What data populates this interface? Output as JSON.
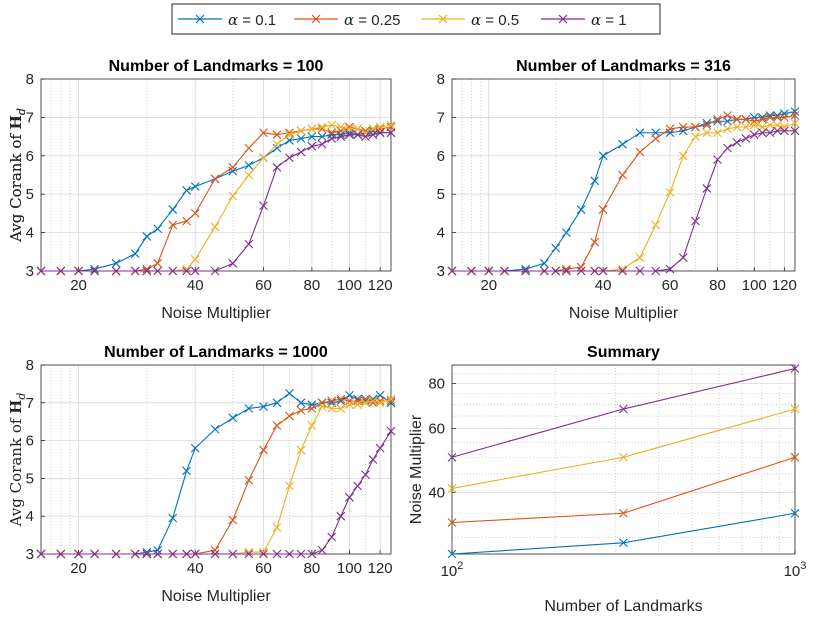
{
  "legend": {
    "entries": [
      {
        "prefix": "α",
        "suffix": " = 0.1"
      },
      {
        "prefix": "α",
        "suffix": " = 0.25"
      },
      {
        "prefix": "α",
        "suffix": " = 0.5"
      },
      {
        "prefix": "α",
        "suffix": " = 1"
      }
    ],
    "marker": "x"
  },
  "colors": [
    "#0072BD",
    "#D95319",
    "#EDB120",
    "#7E2F8E"
  ],
  "chart_data": [
    {
      "type": "line",
      "title": "Number of Landmarks = 100",
      "xlabel": "Noise Multiplier",
      "ylabel_prefix": "Avg Corank of ",
      "ylabel_sym": "H",
      "ylabel_sub": "d",
      "xscale": "log",
      "xlim": [
        16,
        128
      ],
      "ylim": [
        3,
        8
      ],
      "xticks": [
        20,
        40,
        60,
        80,
        100,
        120
      ],
      "yticks": [
        3,
        4,
        5,
        6,
        7,
        8
      ],
      "x": [
        16,
        18,
        20,
        22,
        25,
        28,
        30,
        32,
        35,
        38,
        40,
        45,
        50,
        55,
        60,
        65,
        70,
        75,
        80,
        85,
        90,
        95,
        100,
        105,
        110,
        115,
        120,
        128
      ],
      "series": [
        {
          "name": "α = 0.1",
          "values": [
            3.0,
            3.0,
            3.0,
            3.05,
            3.2,
            3.45,
            3.9,
            4.1,
            4.6,
            5.1,
            5.2,
            5.4,
            5.6,
            5.75,
            5.95,
            6.2,
            6.4,
            6.45,
            6.5,
            6.5,
            6.55,
            6.55,
            6.6,
            6.55,
            6.6,
            6.65,
            6.6,
            6.6
          ]
        },
        {
          "name": "α = 0.25",
          "values": [
            3.0,
            3.0,
            3.0,
            3.0,
            3.0,
            3.0,
            3.05,
            3.2,
            4.2,
            4.3,
            4.5,
            5.4,
            5.7,
            6.2,
            6.6,
            6.55,
            6.6,
            6.65,
            6.7,
            6.7,
            6.6,
            6.65,
            6.75,
            6.7,
            6.65,
            6.7,
            6.7,
            6.75
          ]
        },
        {
          "name": "α = 0.5",
          "values": [
            3.0,
            3.0,
            3.0,
            3.0,
            3.0,
            3.0,
            3.0,
            3.0,
            3.0,
            3.05,
            3.3,
            4.15,
            4.95,
            5.5,
            5.95,
            6.3,
            6.55,
            6.65,
            6.7,
            6.75,
            6.8,
            6.75,
            6.7,
            6.7,
            6.6,
            6.7,
            6.75,
            6.8
          ]
        },
        {
          "name": "α = 1",
          "values": [
            3.0,
            3.0,
            3.0,
            3.0,
            3.0,
            3.0,
            3.0,
            3.0,
            3.0,
            3.0,
            3.0,
            3.0,
            3.2,
            3.7,
            4.7,
            5.7,
            5.95,
            6.1,
            6.25,
            6.3,
            6.45,
            6.5,
            6.55,
            6.55,
            6.5,
            6.55,
            6.6,
            6.6
          ]
        }
      ]
    },
    {
      "type": "line",
      "title": "Number of Landmarks = 316",
      "xlabel": "Noise Multiplier",
      "ylabel_prefix": "Avg Corank of ",
      "ylabel_sym": "H",
      "ylabel_sub": "d",
      "xscale": "log",
      "xlim": [
        16,
        128
      ],
      "ylim": [
        3,
        8
      ],
      "xticks": [
        20,
        40,
        60,
        80,
        100,
        120
      ],
      "yticks": [
        3,
        4,
        5,
        6,
        7,
        8
      ],
      "x": [
        16,
        18,
        20,
        22,
        25,
        28,
        30,
        32,
        35,
        38,
        40,
        45,
        50,
        55,
        60,
        65,
        70,
        75,
        80,
        85,
        90,
        95,
        100,
        105,
        110,
        115,
        120,
        128
      ],
      "series": [
        {
          "name": "α = 0.1",
          "values": [
            3.0,
            3.0,
            3.0,
            3.0,
            3.05,
            3.2,
            3.6,
            4.0,
            4.6,
            5.35,
            6.0,
            6.3,
            6.6,
            6.6,
            6.6,
            6.65,
            6.75,
            6.85,
            6.9,
            6.9,
            6.95,
            6.95,
            7.0,
            7.0,
            7.05,
            7.05,
            7.1,
            7.15
          ]
        },
        {
          "name": "α = 0.25",
          "values": [
            3.0,
            3.0,
            3.0,
            3.0,
            3.0,
            3.0,
            3.0,
            3.05,
            3.1,
            3.75,
            4.6,
            5.5,
            6.1,
            6.45,
            6.7,
            6.75,
            6.75,
            6.8,
            6.95,
            7.05,
            6.95,
            6.95,
            6.9,
            6.95,
            7.0,
            7.0,
            7.0,
            7.05
          ]
        },
        {
          "name": "α = 0.5",
          "values": [
            3.0,
            3.0,
            3.0,
            3.0,
            3.0,
            3.0,
            3.0,
            3.0,
            3.0,
            3.0,
            3.0,
            3.05,
            3.35,
            4.2,
            5.05,
            6.0,
            6.5,
            6.6,
            6.6,
            6.7,
            6.75,
            6.75,
            6.8,
            6.75,
            6.8,
            6.8,
            6.75,
            6.85
          ]
        },
        {
          "name": "α = 1",
          "values": [
            3.0,
            3.0,
            3.0,
            3.0,
            3.0,
            3.0,
            3.0,
            3.0,
            3.0,
            3.0,
            3.0,
            3.0,
            3.0,
            3.0,
            3.05,
            3.35,
            4.3,
            5.15,
            5.9,
            6.2,
            6.35,
            6.45,
            6.55,
            6.6,
            6.6,
            6.65,
            6.65,
            6.65
          ]
        }
      ]
    },
    {
      "type": "line",
      "title": "Number of Landmarks = 1000",
      "xlabel": "Noise Multiplier",
      "ylabel_prefix": "Avg Corank of ",
      "ylabel_sym": "H",
      "ylabel_sub": "d",
      "xscale": "log",
      "xlim": [
        16,
        128
      ],
      "ylim": [
        3,
        8
      ],
      "xticks": [
        20,
        40,
        60,
        80,
        100,
        120
      ],
      "yticks": [
        3,
        4,
        5,
        6,
        7,
        8
      ],
      "x": [
        16,
        18,
        20,
        22,
        25,
        28,
        30,
        32,
        35,
        38,
        40,
        45,
        50,
        55,
        60,
        65,
        70,
        75,
        80,
        85,
        90,
        95,
        100,
        105,
        110,
        115,
        120,
        128
      ],
      "series": [
        {
          "name": "α = 0.1",
          "values": [
            3.0,
            3.0,
            3.0,
            3.0,
            3.0,
            3.0,
            3.05,
            3.1,
            3.95,
            5.2,
            5.8,
            6.3,
            6.6,
            6.85,
            6.9,
            7.0,
            7.25,
            7.0,
            6.95,
            7.0,
            7.0,
            7.05,
            7.2,
            7.1,
            7.05,
            7.1,
            7.2,
            7.0
          ]
        },
        {
          "name": "α = 0.25",
          "values": [
            3.0,
            3.0,
            3.0,
            3.0,
            3.0,
            3.0,
            3.0,
            3.0,
            3.0,
            3.0,
            3.0,
            3.1,
            3.9,
            4.95,
            5.75,
            6.4,
            6.65,
            6.8,
            6.85,
            7.0,
            7.05,
            7.1,
            7.05,
            7.05,
            7.1,
            7.0,
            7.05,
            7.05
          ]
        },
        {
          "name": "α = 0.5",
          "values": [
            3.0,
            3.0,
            3.0,
            3.0,
            3.0,
            3.0,
            3.0,
            3.0,
            3.0,
            3.0,
            3.0,
            3.0,
            3.0,
            3.05,
            3.05,
            3.7,
            4.8,
            5.75,
            6.4,
            6.9,
            6.85,
            6.85,
            6.95,
            6.95,
            7.0,
            7.05,
            7.0,
            7.1
          ]
        },
        {
          "name": "α = 1",
          "values": [
            3.0,
            3.0,
            3.0,
            3.0,
            3.0,
            3.0,
            3.0,
            3.0,
            3.0,
            3.0,
            3.0,
            3.0,
            3.0,
            3.0,
            3.0,
            3.0,
            3.0,
            3.0,
            3.0,
            3.1,
            3.45,
            4.0,
            4.5,
            4.8,
            5.1,
            5.5,
            5.8,
            6.25
          ]
        }
      ]
    },
    {
      "type": "line",
      "title": "Summary",
      "xlabel": "Number of Landmarks",
      "ylabel": "Noise Multiplier",
      "xscale": "log",
      "yscale": "log",
      "xlim": [
        100,
        1000
      ],
      "ylim": [
        27,
        90
      ],
      "xticks_label": [
        {
          "base": "10",
          "exp": "2",
          "value": 100
        },
        {
          "base": "10",
          "exp": "3",
          "value": 1000
        }
      ],
      "yticks": [
        40,
        60,
        80
      ],
      "x": [
        100,
        316,
        1000
      ],
      "series": [
        {
          "name": "α = 0.1",
          "values": [
            27,
            29,
            35
          ]
        },
        {
          "name": "α = 0.25",
          "values": [
            33,
            35,
            50
          ]
        },
        {
          "name": "α = 0.5",
          "values": [
            41,
            50,
            68
          ]
        },
        {
          "name": "α = 1",
          "values": [
            50,
            68,
            88
          ]
        }
      ]
    }
  ]
}
